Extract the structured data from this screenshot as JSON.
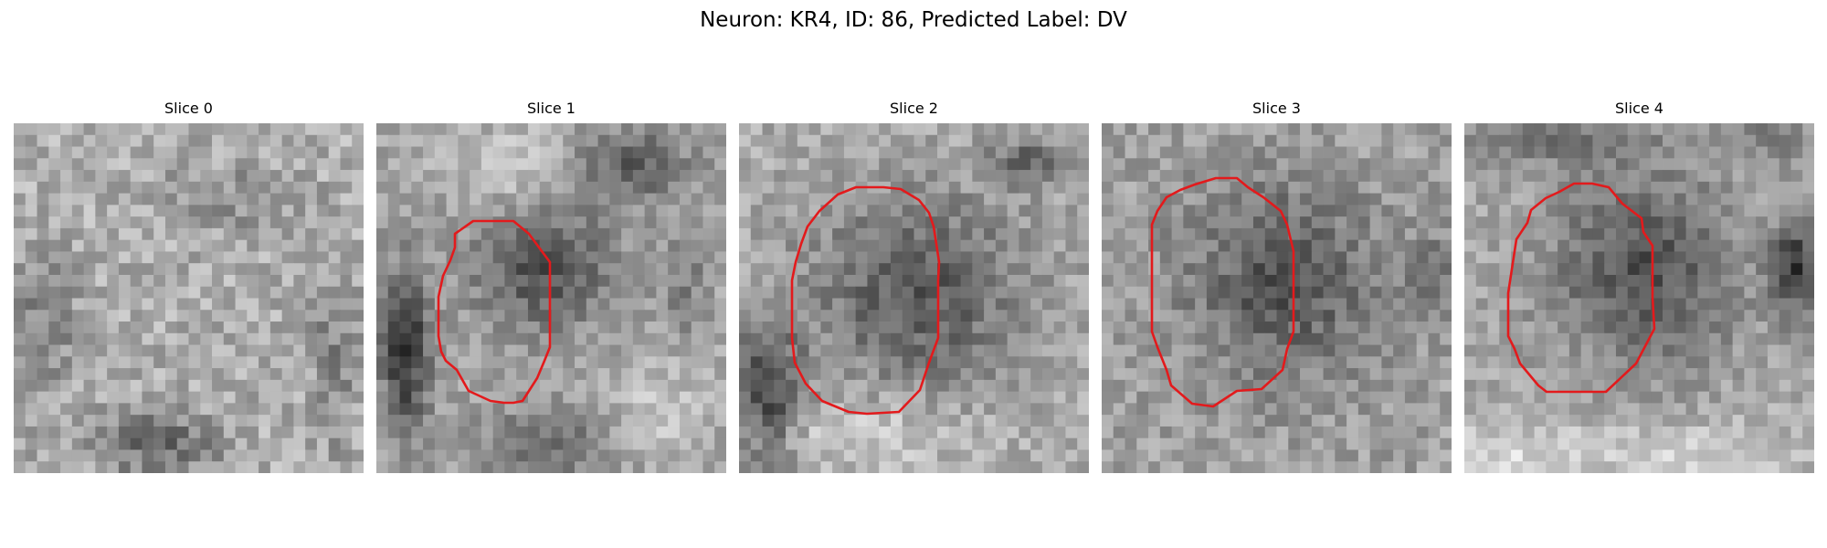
{
  "figure": {
    "title": "Neuron: KR4, ID: 86, Predicted Label: DV"
  },
  "panels": [
    {
      "title": "Slice 0",
      "has_contour": false
    },
    {
      "title": "Slice 1",
      "has_contour": true
    },
    {
      "title": "Slice 2",
      "has_contour": true
    },
    {
      "title": "Slice 3",
      "has_contour": true
    },
    {
      "title": "Slice 4",
      "has_contour": true
    }
  ],
  "colors": {
    "contour": "#e31a1c"
  }
}
